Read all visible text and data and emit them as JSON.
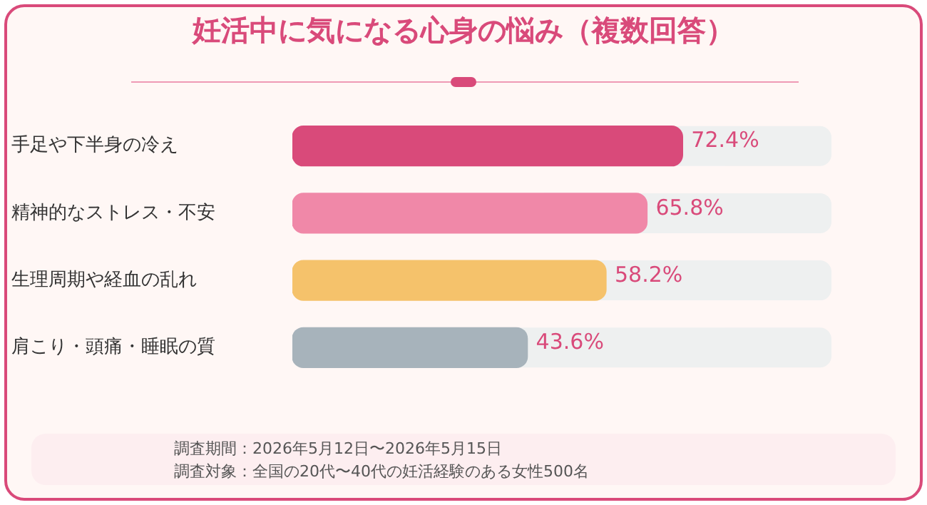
{
  "chart_data": {
    "type": "bar",
    "orientation": "horizontal",
    "title": "妊活中に気になる心身の悩み（複数回答）",
    "categories": [
      "手足や下半身の冷え",
      "精神的なストレス・不安",
      "生理周期や経血の乱れ",
      "肩こり・頭痛・睡眠の質"
    ],
    "values": [
      72.4,
      65.8,
      58.2,
      43.6
    ],
    "colors": [
      "#d94a7a",
      "#f088a8",
      "#f5c26b",
      "#a7b3bb"
    ],
    "value_labels": [
      "72.4%",
      "65.8%",
      "58.2%",
      "43.6%"
    ],
    "xlim": [
      0,
      100
    ],
    "tick_labels": "y",
    "legend": false,
    "annotations": [
      "調査期間：2026年5月12日〜2026年5月15日",
      "調査対象：全国の20代〜40代の妊活経験のある女性500名"
    ]
  }
}
